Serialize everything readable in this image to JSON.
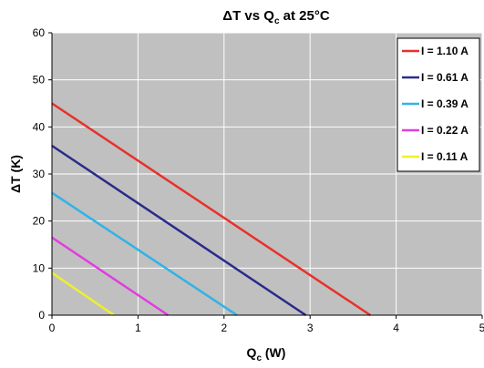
{
  "chart_data": {
    "type": "line",
    "title": "ΔT vs Q",
    "title_sub": "c",
    "title_suffix": " at 25°C",
    "xlabel": "Q",
    "xlabel_sub": "c",
    "xlabel_suffix": " (W)",
    "ylabel": "ΔT (K)",
    "xlim": [
      0,
      5
    ],
    "ylim": [
      0,
      60
    ],
    "xticks": [
      0,
      1,
      2,
      3,
      4,
      5
    ],
    "yticks": [
      0,
      10,
      20,
      30,
      40,
      50,
      60
    ],
    "grid": true,
    "legend_position": "top-right",
    "series": [
      {
        "name": "I = 1.10 A",
        "color": "#e8312a",
        "x": [
          0,
          3.7
        ],
        "y": [
          45,
          0
        ]
      },
      {
        "name": "I = 0.61 A",
        "color": "#2a2a8c",
        "x": [
          0,
          2.95
        ],
        "y": [
          36,
          0
        ]
      },
      {
        "name": "I = 0.39 A",
        "color": "#2fb3e8",
        "x": [
          0,
          2.15
        ],
        "y": [
          26,
          0
        ]
      },
      {
        "name": "I = 0.22 A",
        "color": "#e23ce0",
        "x": [
          0,
          1.35
        ],
        "y": [
          16.5,
          0
        ]
      },
      {
        "name": "I = 0.11 A",
        "color": "#f0f02a",
        "x": [
          0,
          0.72
        ],
        "y": [
          9,
          0
        ]
      }
    ]
  }
}
